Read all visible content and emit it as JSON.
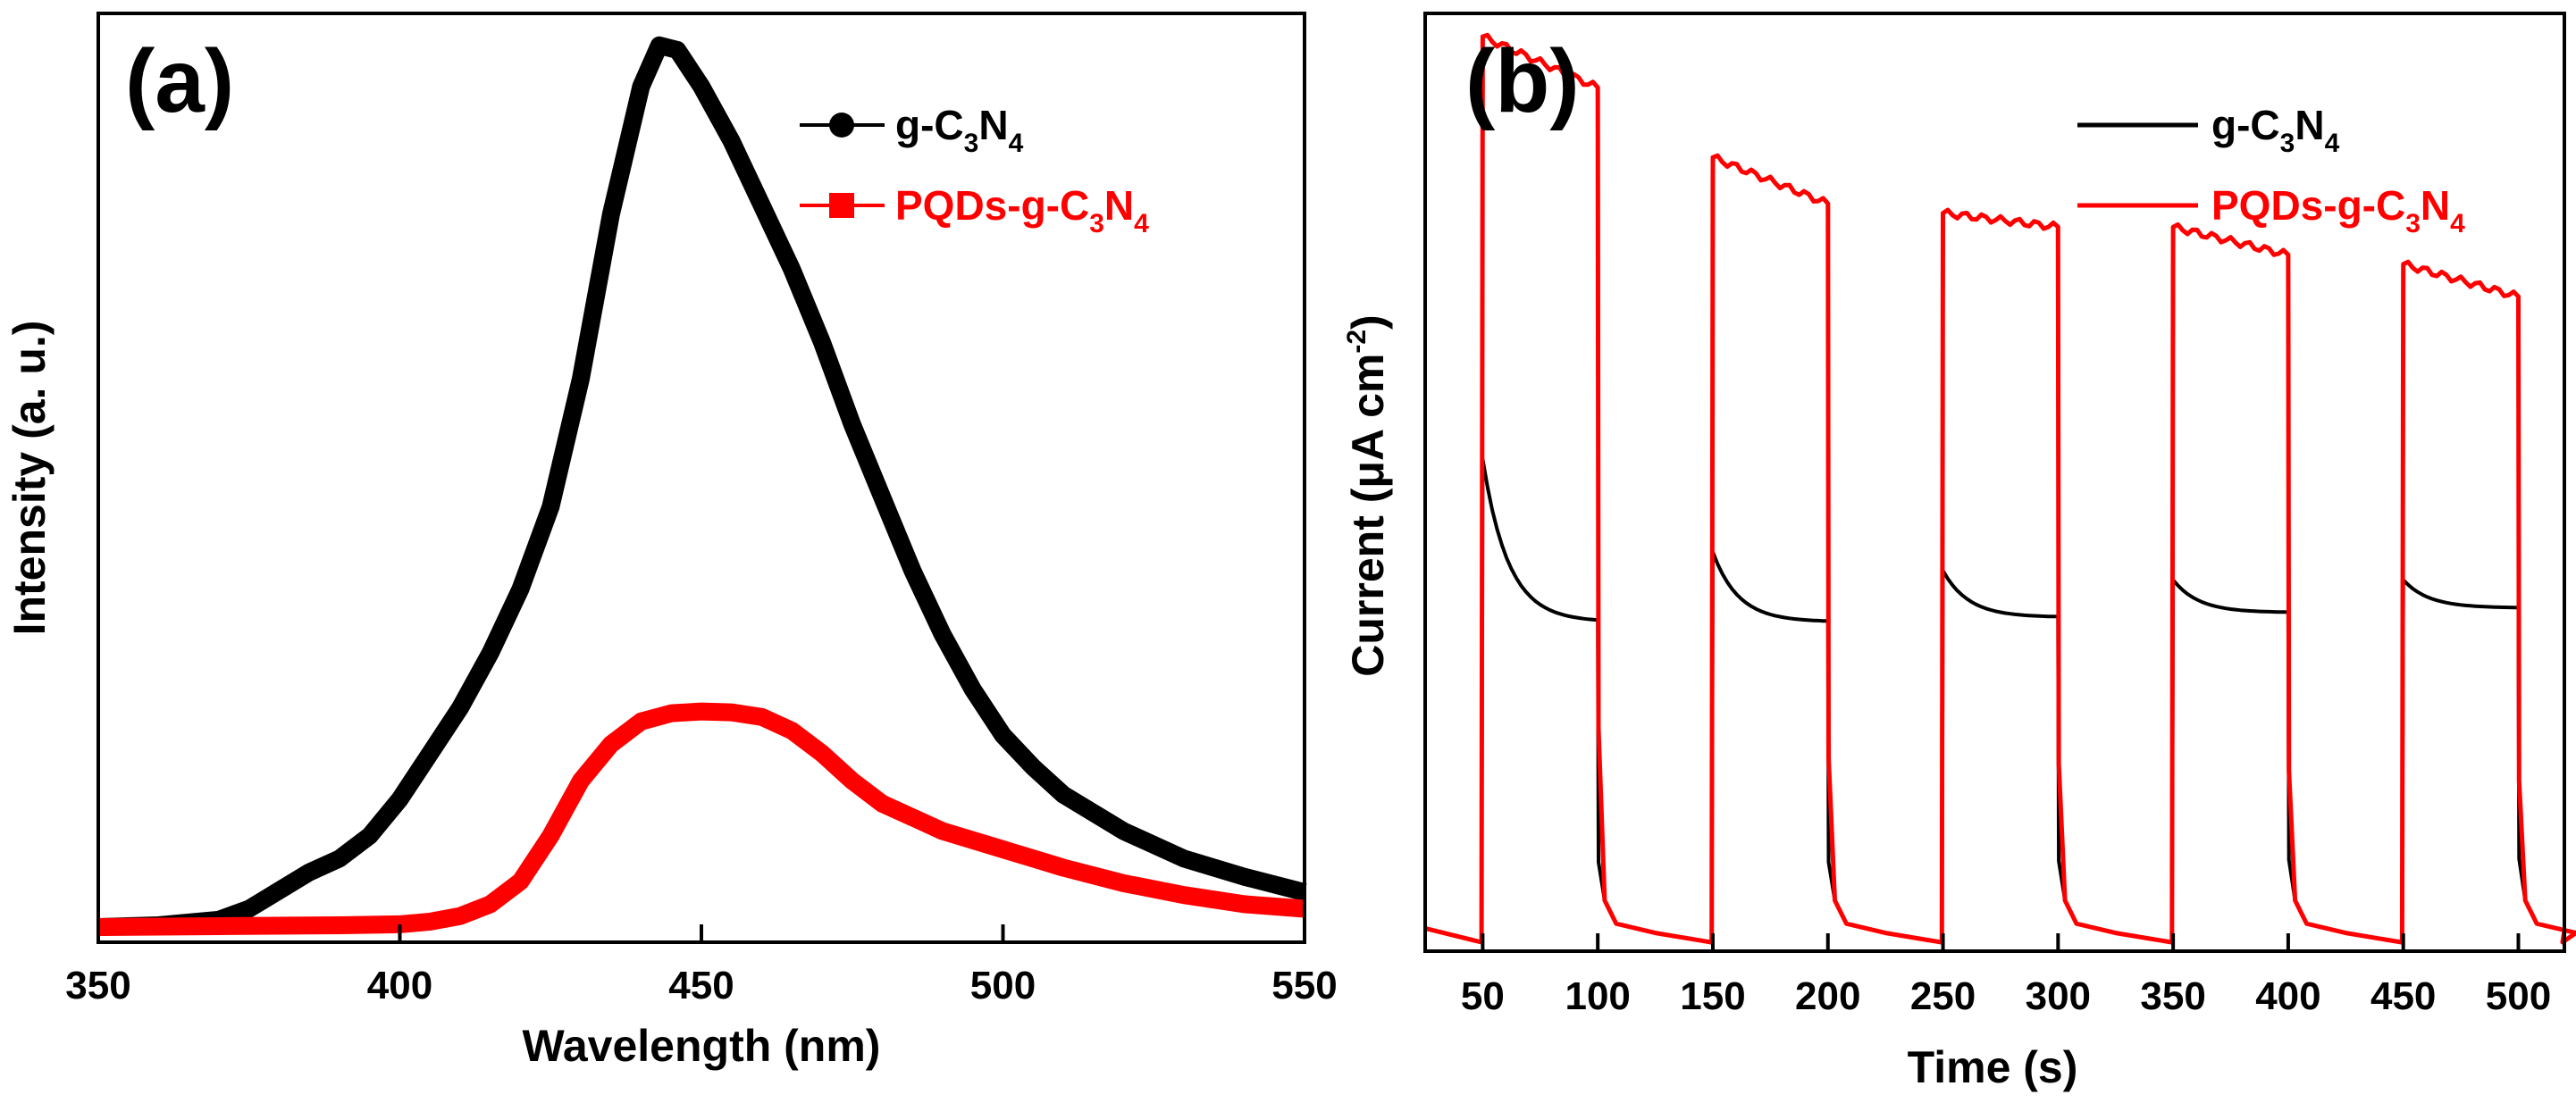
{
  "chart_data": [
    {
      "panel": "(a)",
      "type": "line",
      "xlabel": "Wavelength (nm)",
      "ylabel": "Intensity (a. u.)",
      "xlim": [
        350,
        550
      ],
      "ylim": [
        0,
        1.0
      ],
      "xticks": [
        350,
        400,
        450,
        500,
        550
      ],
      "x_tick_labels": [
        "350",
        "400",
        "450",
        "500",
        "550"
      ],
      "yticks_shown": false,
      "legend_position": "top-right",
      "series": [
        {
          "name": "g-C3N4",
          "legend": {
            "prefix": "g-C",
            "sub1": "3",
            "mid": "N",
            "sub2": "4"
          },
          "color": "#000000",
          "marker": "circle",
          "x": [
            350,
            360,
            370,
            375,
            380,
            385,
            390,
            395,
            400,
            405,
            410,
            415,
            420,
            425,
            430,
            435,
            440,
            443,
            446,
            450,
            455,
            460,
            465,
            470,
            475,
            480,
            485,
            490,
            495,
            500,
            505,
            510,
            520,
            530,
            540,
            550
          ],
          "y": [
            0.0,
            0.002,
            0.008,
            0.02,
            0.04,
            0.06,
            0.075,
            0.1,
            0.14,
            0.19,
            0.24,
            0.3,
            0.37,
            0.46,
            0.6,
            0.78,
            0.92,
            0.965,
            0.96,
            0.92,
            0.86,
            0.79,
            0.72,
            0.64,
            0.55,
            0.47,
            0.39,
            0.32,
            0.26,
            0.21,
            0.175,
            0.145,
            0.105,
            0.075,
            0.055,
            0.038
          ]
        },
        {
          "name": "PQDs-g-C3N4",
          "legend": {
            "prefix": "PQDs-g-C",
            "sub1": "3",
            "mid": "N",
            "sub2": "4"
          },
          "color": "#ff0000",
          "marker": "square",
          "x": [
            350,
            370,
            390,
            400,
            405,
            410,
            415,
            420,
            425,
            430,
            435,
            440,
            445,
            450,
            455,
            460,
            465,
            470,
            475,
            480,
            485,
            490,
            500,
            510,
            520,
            530,
            540,
            550
          ],
          "y": [
            0.0,
            0.001,
            0.002,
            0.003,
            0.006,
            0.012,
            0.025,
            0.05,
            0.1,
            0.16,
            0.2,
            0.225,
            0.234,
            0.236,
            0.235,
            0.23,
            0.215,
            0.19,
            0.16,
            0.135,
            0.12,
            0.105,
            0.085,
            0.065,
            0.048,
            0.035,
            0.025,
            0.02
          ]
        }
      ]
    },
    {
      "panel": "(b)",
      "type": "line",
      "xlabel": "Time (s)",
      "ylabel": "Current (μA cm",
      "ylabel_sup": "-2",
      "ylabel_close": ")",
      "xlim": [
        25,
        520
      ],
      "ylim": [
        0,
        1.0
      ],
      "xticks": [
        50,
        100,
        150,
        200,
        250,
        300,
        350,
        400,
        450,
        500
      ],
      "x_tick_labels": [
        "50",
        "100",
        "150",
        "200",
        "250",
        "300",
        "350",
        "400",
        "450",
        "500"
      ],
      "yticks_shown": false,
      "legend_position": "top-right",
      "light_on_off_cycles": [
        [
          50,
          100
        ],
        [
          150,
          200
        ],
        [
          250,
          300
        ],
        [
          350,
          400
        ],
        [
          450,
          500
        ]
      ],
      "baseline": 0.0,
      "series": [
        {
          "name": "g-C3N4",
          "legend": {
            "prefix": "g-C",
            "sub1": "3",
            "mid": "N",
            "sub2": "4"
          },
          "color": "#000000",
          "on_peak": [
            0.52,
            0.42,
            0.4,
            0.39,
            0.39
          ],
          "on_end": [
            0.345,
            0.345,
            0.35,
            0.355,
            0.36
          ]
        },
        {
          "name": "PQDs-g-C3N4",
          "legend": {
            "prefix": "PQDs-g-C",
            "sub1": "3",
            "mid": "N",
            "sub2": "4"
          },
          "color": "#ff0000",
          "on_peak": [
            0.975,
            0.845,
            0.785,
            0.77,
            0.73
          ],
          "on_end": [
            0.92,
            0.795,
            0.77,
            0.74,
            0.695
          ]
        }
      ]
    }
  ]
}
